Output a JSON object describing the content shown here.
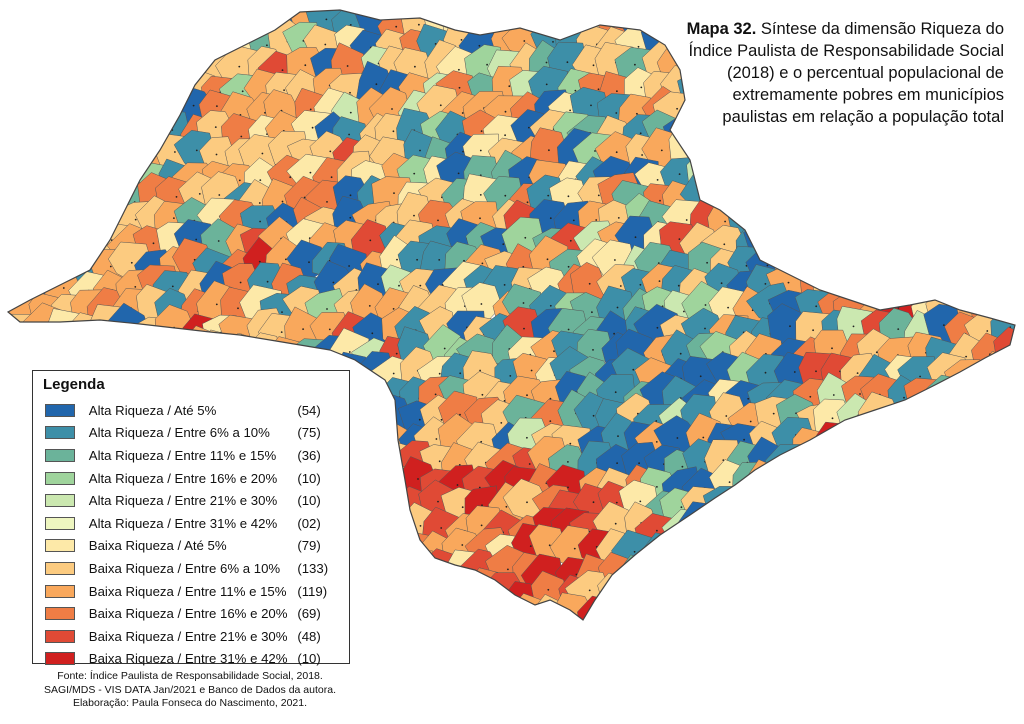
{
  "title": {
    "bold": "Mapa 32.",
    "text": " Síntese da dimensão Riqueza do Índice Paulista de Responsabilidade Social (2018) e o percentual populacional de extremamente pobres em municípios paulistas em relação a população total"
  },
  "legend": {
    "title": "Legenda",
    "items": [
      {
        "label": "Alta Riqueza / Até 5%",
        "count": "(54)",
        "color": "#2166ac"
      },
      {
        "label": "Alta Riqueza / Entre 6% a 10%",
        "count": "(75)",
        "color": "#3d8fa8"
      },
      {
        "label": "Alta Riqueza / Entre 11% e 15%",
        "count": "(36)",
        "color": "#6bb39a"
      },
      {
        "label": "Alta Riqueza / Entre 16% e 20%",
        "count": "(10)",
        "color": "#9fd49c"
      },
      {
        "label": "Alta Riqueza / Entre 21% e 30%",
        "count": "(10)",
        "color": "#cbe8b0"
      },
      {
        "label": "Alta Riqueza / Entre 31% e 42%",
        "count": "(02)",
        "color": "#eef6c0"
      },
      {
        "label": "Baixa Riqueza / Até 5%",
        "count": "(79)",
        "color": "#fde9a8"
      },
      {
        "label": "Baixa Riqueza / Entre 6% a 10%",
        "count": "(133)",
        "color": "#fccb80"
      },
      {
        "label": "Baixa Riqueza / Entre 11% e 15%",
        "count": "(119)",
        "color": "#f9a85c"
      },
      {
        "label": "Baixa Riqueza / Entre 16% e 20%",
        "count": "(69)",
        "color": "#ef7d45"
      },
      {
        "label": "Baixa Riqueza / Entre 21% e 30%",
        "count": "(48)",
        "color": "#e04a35"
      },
      {
        "label": "Baixa Riqueza / Entre 31% e 42%",
        "count": "(10)",
        "color": "#d0201f"
      }
    ]
  },
  "source": {
    "line1": "Fonte: Índice Paulista de Responsabilidade Social, 2018.",
    "line2": "SAGI/MDS - VIS DATA Jan/2021 e Banco de Dados da autora.",
    "line3": "Elaboração: Paula Fonseca do Nascimento, 2021."
  },
  "map": {
    "border_color": "#555555"
  }
}
